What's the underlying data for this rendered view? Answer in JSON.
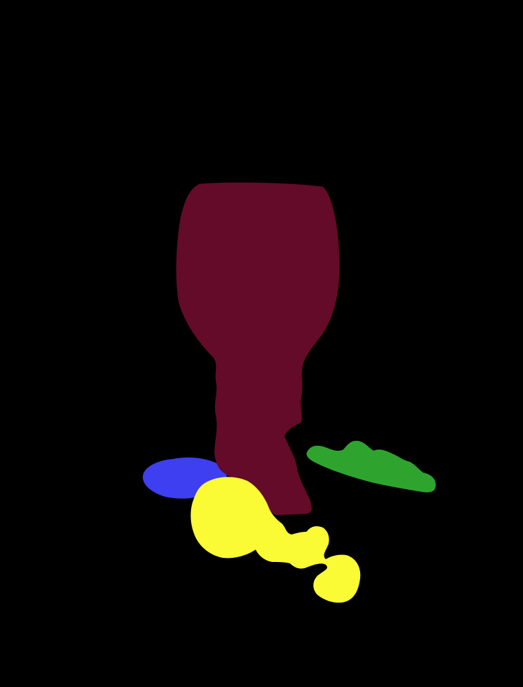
{
  "scene": {
    "background_color": "#000000",
    "regions": [
      {
        "label": "goblet",
        "color": "#630b28"
      },
      {
        "label": "blue-blob",
        "color": "#3e3ff0"
      },
      {
        "label": "green-leaf",
        "color": "#2ea42f"
      },
      {
        "label": "yellow-blob",
        "color": "#fafa35"
      }
    ]
  }
}
